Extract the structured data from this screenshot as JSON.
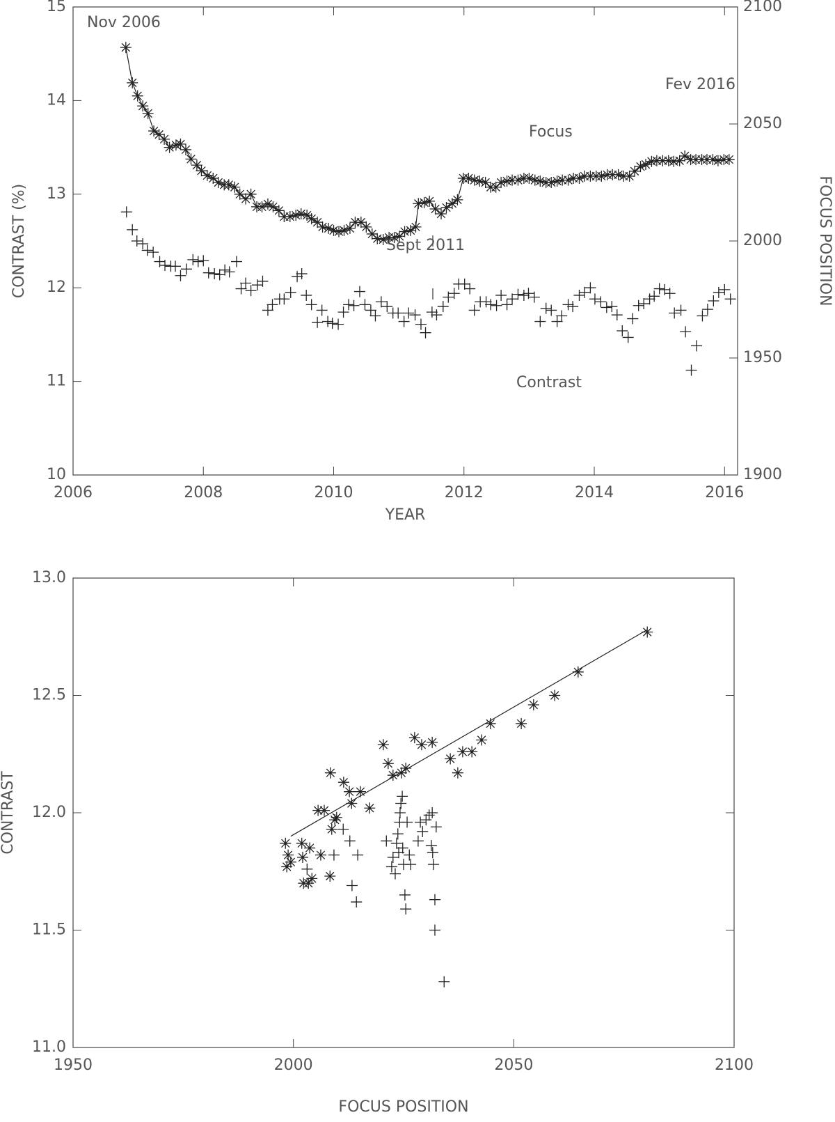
{
  "chart_data": [
    {
      "type": "scatter",
      "xlabel": "YEAR",
      "ylabel": "CONTRAST (%)",
      "y2label": "FOCUS POSITION",
      "xlim": [
        2006,
        2016.2
      ],
      "xticks": [
        2006,
        2008,
        2010,
        2012,
        2014,
        2016
      ],
      "ylim": [
        10,
        15
      ],
      "yticks": [
        10,
        11,
        12,
        13,
        14,
        15
      ],
      "y2lim": [
        1900,
        2100
      ],
      "y2ticks": [
        1900,
        1950,
        2000,
        2050,
        2100
      ],
      "annotations": [
        "Nov 2006",
        "Fev 2016",
        "Sept 2011"
      ],
      "series": [
        {
          "name": "Focus",
          "marker": "asterisk",
          "line": true,
          "axis": "y2",
          "color": "#222",
          "x": [
            2006.81,
            2006.91,
            2006.99,
            2007.07,
            2007.15,
            2007.24,
            2007.32,
            2007.4,
            2007.48,
            2007.58,
            2007.65,
            2007.73,
            2007.81,
            2007.9,
            2007.97,
            2008.06,
            2008.15,
            2008.23,
            2008.32,
            2008.39,
            2008.48,
            2008.56,
            2008.65,
            2008.73,
            2008.82,
            2008.9,
            2008.99,
            2009.07,
            2009.16,
            2009.24,
            2009.33,
            2009.42,
            2009.5,
            2009.59,
            2009.66,
            2009.75,
            2009.83,
            2009.92,
            2010.0,
            2010.08,
            2010.16,
            2010.25,
            2010.33,
            2010.42,
            2010.5,
            2010.59,
            2010.67,
            2010.76,
            2010.85,
            2010.93,
            2011.01,
            2011.09,
            2011.18,
            2011.26,
            2011.3,
            2011.39,
            2011.47,
            2011.56,
            2011.65,
            2011.73,
            2011.82,
            2011.9,
            2011.99,
            2012.07,
            2012.16,
            2012.24,
            2012.33,
            2012.41,
            2012.49,
            2012.57,
            2012.66,
            2012.74,
            2012.83,
            2012.92,
            2013.0,
            2013.09,
            2013.17,
            2013.26,
            2013.34,
            2013.43,
            2013.51,
            2013.6,
            2013.68,
            2013.77,
            2013.85,
            2013.94,
            2014.03,
            2014.11,
            2014.2,
            2014.28,
            2014.37,
            2014.45,
            2014.54,
            2014.62,
            2014.71,
            2014.79,
            2014.88,
            2014.96,
            2015.05,
            2015.14,
            2015.22,
            2015.31,
            2015.39,
            2015.48,
            2015.56,
            2015.65,
            2015.73,
            2015.82,
            2015.9,
            2015.99,
            2016.07
          ],
          "values": [
            2082.7,
            2067.6,
            2062,
            2057.7,
            2054.5,
            2047,
            2045.5,
            2043.5,
            2040,
            2041,
            2041.4,
            2039,
            2035,
            2032.4,
            2030,
            2028,
            2026.8,
            2025,
            2024,
            2024,
            2023,
            2020,
            2018,
            2020,
            2014.6,
            2014.6,
            2015.8,
            2014.6,
            2013,
            2010.4,
            2010.4,
            2011,
            2011.6,
            2011,
            2009.5,
            2008,
            2006,
            2005.4,
            2004.5,
            2004,
            2004.5,
            2005.4,
            2008,
            2008,
            2006,
            2003,
            2001,
            2000.6,
            2001.5,
            2001.5,
            2002,
            2004,
            2004.5,
            2006,
            2016,
            2016.4,
            2017,
            2013.7,
            2011.6,
            2014.3,
            2016,
            2017.6,
            2026.8,
            2026.8,
            2026,
            2025.6,
            2025,
            2023,
            2023,
            2025,
            2025.6,
            2026,
            2026,
            2026.8,
            2026.8,
            2026,
            2025.6,
            2025,
            2025,
            2025.6,
            2026,
            2026,
            2026.8,
            2026.8,
            2027.7,
            2027.7,
            2027.7,
            2027.7,
            2028.3,
            2028.3,
            2028.3,
            2027.7,
            2027.7,
            2029.8,
            2031.8,
            2032.7,
            2034,
            2034.3,
            2034.3,
            2034.3,
            2034,
            2034.3,
            2036.3,
            2034.8,
            2034.8,
            2034.8,
            2034.8,
            2034.8,
            2034.3,
            2034.8,
            2034.8
          ]
        },
        {
          "name": "Contrast",
          "marker": "plus",
          "line": false,
          "color": "#222",
          "x": [
            2006.82,
            2006.91,
            2006.98,
            2007.07,
            2007.14,
            2007.23,
            2007.33,
            2007.41,
            2007.5,
            2007.57,
            2007.65,
            2007.74,
            2007.84,
            2007.92,
            2008.0,
            2008.08,
            2008.17,
            2008.25,
            2008.33,
            2008.4,
            2008.51,
            2008.58,
            2008.65,
            2008.73,
            2008.83,
            2008.91,
            2008.99,
            2009.06,
            2009.17,
            2009.24,
            2009.34,
            2009.44,
            2009.51,
            2009.58,
            2009.66,
            2009.75,
            2009.82,
            2009.91,
            2009.98,
            2010.07,
            2010.15,
            2010.23,
            2010.31,
            2010.4,
            2010.48,
            2010.57,
            2010.64,
            2010.73,
            2010.82,
            2010.91,
            2010.99,
            2011.08,
            2011.15,
            2011.25,
            2011.34,
            2011.41,
            2011.51,
            2011.58,
            2011.68,
            2011.76,
            2011.85,
            2011.92,
            2012.01,
            2012.09,
            2012.16,
            2012.25,
            2012.34,
            2012.41,
            2012.5,
            2012.57,
            2012.66,
            2012.74,
            2012.83,
            2012.92,
            2012.99,
            2013.08,
            2013.17,
            2013.26,
            2013.34,
            2013.43,
            2013.5,
            2013.6,
            2013.67,
            2013.77,
            2013.85,
            2013.94,
            2014.01,
            2014.1,
            2014.19,
            2014.27,
            2014.35,
            2014.43,
            2014.52,
            2014.59,
            2014.68,
            2014.76,
            2014.85,
            2014.92,
            2015.0,
            2015.08,
            2015.16,
            2015.23,
            2015.33,
            2015.4,
            2015.49,
            2015.57,
            2015.66,
            2015.74,
            2015.83,
            2015.91,
            2016.0,
            2016.09
          ],
          "values": [
            12.81,
            12.62,
            12.5,
            12.47,
            12.4,
            12.38,
            12.28,
            12.24,
            12.23,
            12.23,
            12.13,
            12.2,
            12.3,
            12.28,
            12.29,
            12.16,
            12.15,
            12.14,
            12.19,
            12.17,
            12.28,
            11.99,
            12.05,
            11.97,
            12.03,
            12.07,
            11.76,
            11.82,
            11.88,
            11.88,
            11.95,
            12.12,
            12.15,
            11.92,
            11.82,
            11.63,
            11.76,
            11.64,
            11.62,
            11.61,
            11.74,
            11.82,
            11.81,
            11.96,
            11.82,
            11.76,
            11.7,
            11.85,
            11.8,
            11.73,
            11.73,
            11.64,
            11.73,
            11.71,
            11.61,
            11.52,
            11.74,
            11.71,
            11.8,
            11.9,
            11.94,
            12.04,
            12.04,
            11.99,
            11.76,
            11.85,
            11.85,
            11.82,
            11.81,
            11.92,
            11.82,
            11.88,
            11.93,
            11.92,
            11.94,
            11.9,
            11.64,
            11.78,
            11.76,
            11.64,
            11.7,
            11.82,
            11.8,
            11.92,
            11.95,
            12.0,
            11.88,
            11.85,
            11.79,
            11.8,
            11.71,
            11.54,
            11.47,
            11.67,
            11.81,
            11.83,
            11.88,
            11.91,
            11.99,
            11.98,
            11.94,
            11.73,
            11.76,
            11.53,
            11.12,
            11.38,
            11.7,
            11.77,
            11.86,
            11.95,
            11.98,
            11.88
          ]
        }
      ]
    },
    {
      "type": "scatter",
      "xlabel": "FOCUS POSITION",
      "ylabel": "CONTRAST",
      "xlim": [
        1950,
        2100
      ],
      "xticks": [
        1950,
        2000,
        2050,
        2100
      ],
      "ylim": [
        11,
        13
      ],
      "yticks": [
        {
          "value": 11,
          "label": "11.0"
        },
        11.5,
        {
          "value": 12,
          "label": "12.0"
        },
        12.5,
        {
          "value": 13,
          "label": "13.0"
        }
      ],
      "series": [
        {
          "marker": "asterisk",
          "line": false,
          "color": "#222",
          "x": [
            2080.3,
            2064.6,
            2059.3,
            2054.5,
            2051.7,
            2044.7,
            2042.7,
            2040.5,
            2038.4,
            2037.3,
            2035.6,
            2031.5,
            2029.1,
            2027.5,
            2025.5,
            2024.5,
            2022.6,
            2021.5,
            2020.4,
            2017.3,
            2015.2,
            2012.7,
            2011.4,
            2008.4,
            2009.8,
            2007.0,
            2005.6,
            2009.4,
            2008.7,
            2003.7,
            2006.2,
            2001.9,
            1998.8,
            1998.2,
            1998.5,
            1999.4,
            2002.3,
            2003.4,
            2004.2,
            2008.3,
            2013.2,
            2002.1
          ],
          "values": [
            12.77,
            12.6,
            12.5,
            12.46,
            12.38,
            12.38,
            12.31,
            12.26,
            12.26,
            12.17,
            12.23,
            12.3,
            12.29,
            12.32,
            12.19,
            12.17,
            12.16,
            12.21,
            12.29,
            12.02,
            12.09,
            12.09,
            12.13,
            12.17,
            11.98,
            12.01,
            12.01,
            11.97,
            11.93,
            11.85,
            11.82,
            11.87,
            11.82,
            11.87,
            11.77,
            11.79,
            11.7,
            11.7,
            11.72,
            11.73,
            12.04,
            11.81
          ]
        },
        {
          "marker": "plus",
          "line": false,
          "color": "#222",
          "x": [
            2003.1,
            2009.2,
            2011.3,
            2012.8,
            2013.3,
            2014.3,
            2014.6,
            2021.1,
            2022.3,
            2022.6,
            2023.1,
            2023.4,
            2023.7,
            2024.1,
            2024.2,
            2024.4,
            2024.7,
            2023.9,
            2024.8,
            2025.0,
            2025.3,
            2025.5,
            2026.3,
            2026.6,
            2028.3,
            2029.3,
            2030.1,
            2030.8,
            2031.5,
            2031.3,
            2031.6,
            2031.8,
            2032.1,
            2032.1,
            2032.4,
            2034.2,
            2025.8,
            2028.8
          ],
          "values": [
            11.76,
            11.82,
            11.93,
            11.88,
            11.69,
            11.62,
            11.82,
            11.88,
            11.77,
            11.81,
            11.74,
            11.87,
            11.91,
            11.96,
            12.0,
            12.04,
            12.07,
            11.83,
            11.85,
            11.78,
            11.65,
            11.59,
            11.82,
            11.78,
            11.88,
            11.92,
            11.97,
            11.99,
            12.0,
            11.86,
            11.83,
            11.78,
            11.63,
            11.5,
            11.94,
            11.28,
            11.96,
            11.96
          ]
        },
        {
          "marker": "none",
          "line": true,
          "color": "#222",
          "x": [
            1999.4,
            2080.3
          ],
          "values": [
            11.9,
            12.78
          ]
        }
      ]
    }
  ]
}
